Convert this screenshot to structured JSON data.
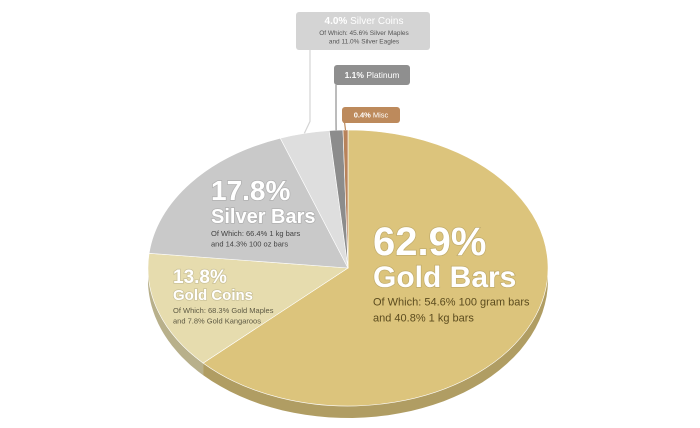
{
  "chart_data": {
    "type": "pie",
    "categories": [
      "Gold Bars",
      "Gold Coins",
      "Silver Bars",
      "Silver Coins",
      "Platinum",
      "Misc"
    ],
    "values": [
      62.9,
      13.8,
      17.8,
      4.0,
      1.1,
      0.4
    ],
    "value_labels": [
      "62.9%",
      "13.8%",
      "17.8%",
      "4.0%",
      "1.1%",
      "0.4%"
    ],
    "colors": [
      "#dcc47c",
      "#e6dcae",
      "#c9c9c9",
      "#dedede",
      "#8c8c8c",
      "#b8835a"
    ],
    "notes": [
      [
        "Of Which: 54.6% 100 gram bars",
        "and 40.8% 1 kg bars"
      ],
      [
        "Of Which: 68.3% Gold Maples",
        "and 7.8% Gold Kangaroos"
      ],
      [
        "Of Which: 66.4% 1 kg bars",
        "and 14.3% 100 oz bars"
      ],
      [
        "Of Which: 45.6% Silver Maples",
        "and 11.0% Silver Eagles"
      ],
      null,
      null
    ]
  }
}
